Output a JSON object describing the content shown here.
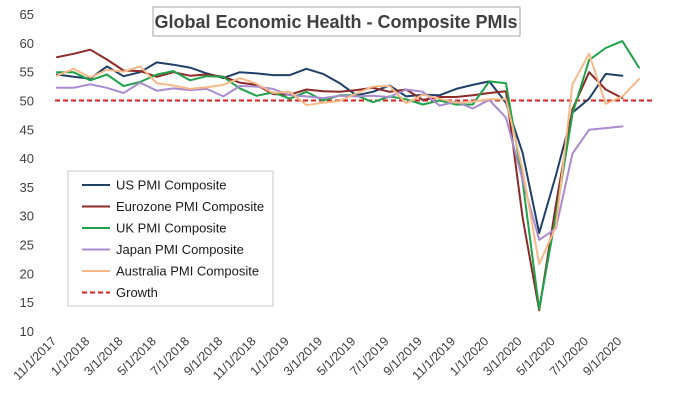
{
  "chart_data": {
    "type": "line",
    "title": "Global Economic Health - Composite PMIs",
    "ylim": [
      10,
      65
    ],
    "yticks": [
      10,
      15,
      20,
      25,
      30,
      35,
      40,
      45,
      50,
      55,
      60,
      65
    ],
    "x": [
      "11/1/2017",
      "12/1/2017",
      "1/1/2018",
      "2/1/2018",
      "3/1/2018",
      "4/1/2018",
      "5/1/2018",
      "6/1/2018",
      "7/1/2018",
      "8/1/2018",
      "9/1/2018",
      "10/1/2018",
      "11/1/2018",
      "12/1/2018",
      "1/1/2019",
      "2/1/2019",
      "3/1/2019",
      "4/1/2019",
      "5/1/2019",
      "6/1/2019",
      "7/1/2019",
      "8/1/2019",
      "9/1/2019",
      "10/1/2019",
      "11/1/2019",
      "12/1/2019",
      "1/1/2020",
      "2/1/2020",
      "3/1/2020",
      "4/1/2020",
      "5/1/2020",
      "6/1/2020",
      "7/1/2020",
      "8/1/2020",
      "9/1/2020",
      "10/1/2020"
    ],
    "xtick_labels": [
      "11/1/2017",
      "1/1/2018",
      "3/1/2018",
      "5/1/2018",
      "7/1/2018",
      "9/1/2018",
      "11/1/2018",
      "1/1/2019",
      "3/1/2019",
      "5/1/2019",
      "7/1/2019",
      "9/1/2019",
      "11/1/2019",
      "1/1/2020",
      "3/1/2020",
      "5/1/2020",
      "7/1/2020",
      "9/1/2020"
    ],
    "grid": false,
    "legend_position": "left-middle",
    "series": [
      {
        "name": "US PMI Composite",
        "color": "#1f3f68",
        "values": [
          54.5,
          54.1,
          53.8,
          55.9,
          54.2,
          54.9,
          56.6,
          56.2,
          55.7,
          54.7,
          53.9,
          54.9,
          54.7,
          54.4,
          54.4,
          55.5,
          54.6,
          53.0,
          50.9,
          51.5,
          52.6,
          50.7,
          51.0,
          50.9,
          52.0,
          52.7,
          53.3,
          49.6,
          40.9,
          27.0,
          37.0,
          47.9,
          50.3,
          54.6,
          54.3,
          null
        ]
      },
      {
        "name": "Eurozone PMI Composite",
        "color": "#8b2a26",
        "values": [
          57.5,
          58.1,
          58.8,
          57.1,
          55.2,
          55.1,
          54.1,
          54.9,
          54.3,
          54.5,
          54.1,
          53.1,
          52.7,
          51.1,
          51.0,
          51.9,
          51.6,
          51.5,
          51.8,
          52.2,
          51.5,
          51.9,
          50.1,
          50.6,
          50.6,
          50.9,
          51.3,
          51.6,
          29.7,
          13.6,
          31.9,
          48.5,
          54.9,
          51.9,
          50.4,
          null
        ]
      },
      {
        "name": "UK PMI Composite",
        "color": "#1fa24a",
        "values": [
          54.9,
          54.9,
          53.5,
          54.5,
          52.5,
          53.2,
          54.5,
          55.1,
          53.5,
          54.2,
          54.1,
          52.1,
          50.8,
          51.4,
          50.3,
          51.5,
          50.0,
          50.9,
          50.9,
          49.7,
          50.7,
          50.2,
          49.3,
          50.0,
          49.3,
          49.3,
          53.3,
          53.0,
          36.0,
          13.8,
          30.0,
          47.7,
          57.0,
          59.1,
          60.3,
          55.7
        ]
      },
      {
        "name": "Japan PMI Composite",
        "color": "#a98bd0",
        "values": [
          52.2,
          52.2,
          52.8,
          52.2,
          51.3,
          53.1,
          51.7,
          52.1,
          51.8,
          52.0,
          50.7,
          52.5,
          52.4,
          52.0,
          50.9,
          50.7,
          50.4,
          50.8,
          50.7,
          50.8,
          50.6,
          51.9,
          51.5,
          49.1,
          49.8,
          48.6,
          50.1,
          47.0,
          36.2,
          25.8,
          27.8,
          40.8,
          44.9,
          45.2,
          45.5,
          null
        ]
      },
      {
        "name": "Australia PMI Composite",
        "color": "#f7b98a",
        "values": [
          54.3,
          55.5,
          54.0,
          55.3,
          55.0,
          55.9,
          53.0,
          52.6,
          52.0,
          52.3,
          52.7,
          53.9,
          52.9,
          51.3,
          51.5,
          49.2,
          49.6,
          49.9,
          51.2,
          52.4,
          52.5,
          49.5,
          51.0,
          50.3,
          49.6,
          49.8,
          50.2,
          50.2,
          38.0,
          21.6,
          28.1,
          52.8,
          58.1,
          49.4,
          50.7,
          53.7
        ]
      }
    ],
    "reference_line": {
      "name": "Growth",
      "y": 50,
      "color": "#d6211e"
    }
  }
}
